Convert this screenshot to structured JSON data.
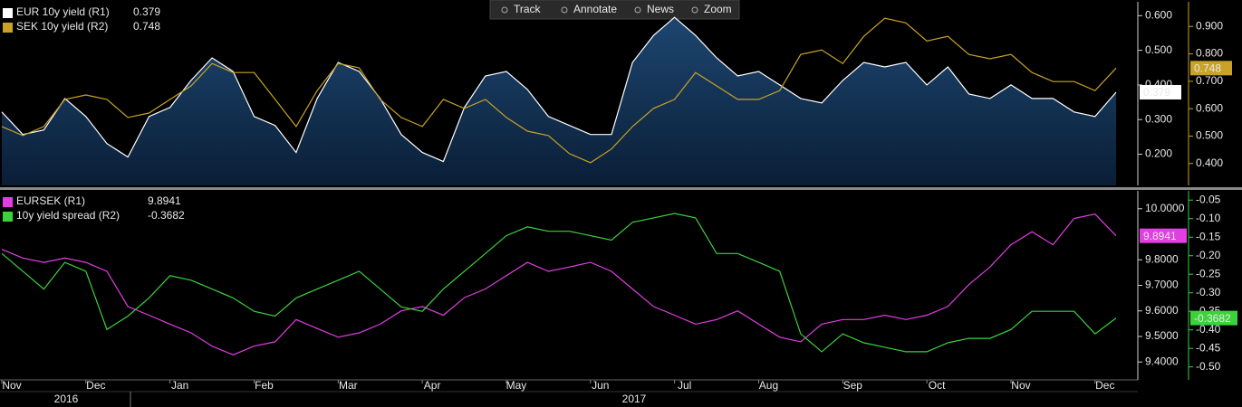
{
  "toolbar": [
    "Track",
    "Annotate",
    "News",
    "Zoom"
  ],
  "chart_data": [
    {
      "type": "line",
      "ylim": [
        0.11,
        0.64
      ],
      "yticks": [
        {
          "value": 0.6,
          "label": "0.600"
        },
        {
          "value": 0.5,
          "label": "0.500"
        },
        {
          "value": 0.4,
          "label": "0.400"
        },
        {
          "value": 0.3,
          "label": "0.300"
        },
        {
          "value": 0.2,
          "label": "0.200"
        }
      ],
      "y2lim": [
        0.32,
        0.99
      ],
      "y2ticks": [
        {
          "value": 0.9,
          "label": "0.900"
        },
        {
          "value": 0.8,
          "label": "0.800"
        },
        {
          "value": 0.7,
          "label": "0.700"
        },
        {
          "value": 0.6,
          "label": "0.600"
        },
        {
          "value": 0.5,
          "label": "0.500"
        },
        {
          "value": 0.4,
          "label": "0.400"
        }
      ],
      "series": [
        {
          "name": "EUR 10y yield (R1)",
          "color": "#ffffff",
          "style": "area",
          "values": [
            0.322,
            0.257,
            0.27,
            0.361,
            0.309,
            0.231,
            0.192,
            0.309,
            0.335,
            0.413,
            0.478,
            0.439,
            0.309,
            0.283,
            0.205,
            0.361,
            0.465,
            0.439,
            0.361,
            0.257,
            0.205,
            0.179,
            0.335,
            0.426,
            0.439,
            0.387,
            0.309,
            0.283,
            0.257,
            0.257,
            0.465,
            0.543,
            0.595,
            0.543,
            0.478,
            0.426,
            0.439,
            0.4,
            0.361,
            0.348,
            0.413,
            0.465,
            0.452,
            0.465,
            0.4,
            0.452,
            0.374,
            0.361,
            0.4,
            0.361,
            0.361,
            0.322,
            0.309,
            0.379
          ]
        },
        {
          "name": "SEK 10y yield (R2)",
          "color": "#c9a227",
          "style": "line",
          "axis": "y2",
          "values": [
            0.535,
            0.502,
            0.535,
            0.634,
            0.65,
            0.634,
            0.568,
            0.584,
            0.634,
            0.683,
            0.765,
            0.732,
            0.732,
            0.634,
            0.535,
            0.666,
            0.765,
            0.749,
            0.634,
            0.568,
            0.535,
            0.634,
            0.601,
            0.634,
            0.568,
            0.518,
            0.502,
            0.436,
            0.403,
            0.453,
            0.535,
            0.601,
            0.634,
            0.732,
            0.683,
            0.634,
            0.634,
            0.666,
            0.798,
            0.814,
            0.765,
            0.864,
            0.93,
            0.913,
            0.847,
            0.864,
            0.798,
            0.782,
            0.798,
            0.732,
            0.699,
            0.699,
            0.666,
            0.748
          ]
        }
      ]
    },
    {
      "type": "line",
      "categories": [
        "Nov",
        null,
        null,
        null,
        "Dec",
        null,
        null,
        null,
        "Jan",
        null,
        null,
        null,
        "Feb",
        null,
        null,
        null,
        "Mar",
        null,
        null,
        null,
        "Apr",
        null,
        null,
        null,
        "May",
        null,
        null,
        null,
        "Jun",
        null,
        null,
        null,
        "Jul",
        null,
        null,
        null,
        "Aug",
        null,
        null,
        null,
        "Sep",
        null,
        null,
        null,
        "Oct",
        null,
        null,
        null,
        "Nov",
        null,
        null,
        null,
        "Dec",
        null
      ],
      "x_years": [
        "2016",
        "2017"
      ],
      "ylim": [
        9.33,
        10.07
      ],
      "yticks": [
        {
          "value": 10.0,
          "label": "10.0000"
        },
        {
          "value": 9.8,
          "label": "9.8000"
        },
        {
          "value": 9.7,
          "label": "9.7000"
        },
        {
          "value": 9.6,
          "label": "9.6000"
        },
        {
          "value": 9.5,
          "label": "9.5000"
        },
        {
          "value": 9.4,
          "label": "9.4000"
        }
      ],
      "y2lim": [
        -0.535,
        -0.025
      ],
      "y2ticks": [
        -0.05,
        {
          "value": -0.1,
          "label": "-0.10"
        },
        -0.15,
        {
          "value": -0.2,
          "label": "-0.20"
        },
        -0.25,
        {
          "value": -0.3,
          "label": "-0.30"
        },
        -0.35,
        {
          "value": -0.4,
          "label": "-0.40"
        },
        -0.45,
        {
          "value": -0.5,
          "label": "-0.50"
        }
      ],
      "series": [
        {
          "name": "EURSEK (R1)",
          "color": "#e23ee2",
          "style": "line",
          "values": [
            9.841,
            9.807,
            9.79,
            9.807,
            9.79,
            9.755,
            9.617,
            9.583,
            9.548,
            9.514,
            9.462,
            9.428,
            9.462,
            9.479,
            9.566,
            9.531,
            9.497,
            9.514,
            9.548,
            9.6,
            9.617,
            9.583,
            9.652,
            9.686,
            9.738,
            9.79,
            9.755,
            9.772,
            9.79,
            9.755,
            9.686,
            9.617,
            9.583,
            9.548,
            9.566,
            9.6,
            9.548,
            9.497,
            9.479,
            9.548,
            9.566,
            9.566,
            9.583,
            9.566,
            9.583,
            9.617,
            9.703,
            9.772,
            9.859,
            9.91,
            9.859,
            9.962,
            9.979,
            9.8941
          ]
        },
        {
          "name": "10y yield spread (R2)",
          "color": "#3cd23c",
          "style": "line",
          "axis": "y2",
          "values": [
            -0.194,
            -0.242,
            -0.29,
            -0.218,
            -0.242,
            -0.399,
            -0.363,
            -0.314,
            -0.254,
            -0.266,
            -0.29,
            -0.314,
            -0.35,
            -0.363,
            -0.314,
            -0.29,
            -0.266,
            -0.242,
            -0.29,
            -0.338,
            -0.35,
            -0.29,
            -0.242,
            -0.194,
            -0.146,
            -0.122,
            -0.134,
            -0.134,
            -0.146,
            -0.158,
            -0.11,
            -0.098,
            -0.086,
            -0.098,
            -0.194,
            -0.194,
            -0.218,
            -0.242,
            -0.411,
            -0.459,
            -0.411,
            -0.435,
            -0.447,
            -0.459,
            -0.459,
            -0.435,
            -0.423,
            -0.423,
            -0.399,
            -0.35,
            -0.35,
            -0.35,
            -0.411,
            -0.3682
          ]
        }
      ]
    }
  ]
}
